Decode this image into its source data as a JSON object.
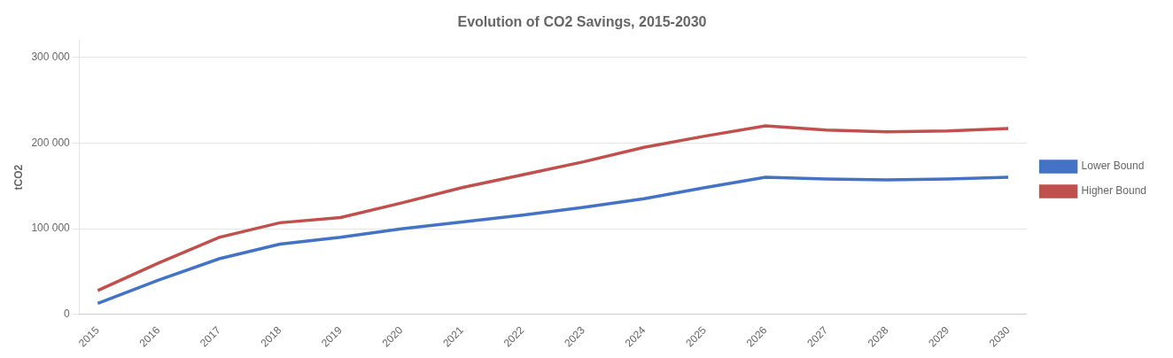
{
  "chart_data": {
    "type": "line",
    "title": "Evolution of CO2 Savings, 2015-2030",
    "ylabel": "tCO2",
    "x": [
      2015,
      2016,
      2017,
      2018,
      2019,
      2020,
      2021,
      2022,
      2023,
      2024,
      2025,
      2026,
      2027,
      2028,
      2029,
      2030
    ],
    "series": [
      {
        "name": "Lower Bound",
        "color": "#4472C4",
        "values": [
          13000,
          40000,
          65000,
          82000,
          90000,
          100000,
          108000,
          116000,
          125000,
          135000,
          148000,
          160000,
          158000,
          157000,
          158000,
          160000
        ]
      },
      {
        "name": "Higher Bound",
        "color": "#C0504D",
        "values": [
          28000,
          60000,
          90000,
          107000,
          113000,
          130000,
          148000,
          163000,
          178000,
          195000,
          208000,
          220000,
          215000,
          213000,
          214000,
          217000
        ]
      }
    ],
    "xlim": [
      2014.7,
      2030.3
    ],
    "xticks": [
      2015,
      2016,
      2017,
      2018,
      2019,
      2020,
      2021,
      2022,
      2023,
      2024,
      2025,
      2026,
      2027,
      2028,
      2029,
      2030
    ],
    "ylim": [
      0,
      320000
    ],
    "yticks": [
      0,
      {
        "value": 100000,
        "label": "100 000"
      },
      {
        "value": 200000,
        "label": "200 000"
      },
      {
        "value": 300000,
        "label": "300 000"
      }
    ],
    "grid": "y",
    "legend": "right"
  }
}
